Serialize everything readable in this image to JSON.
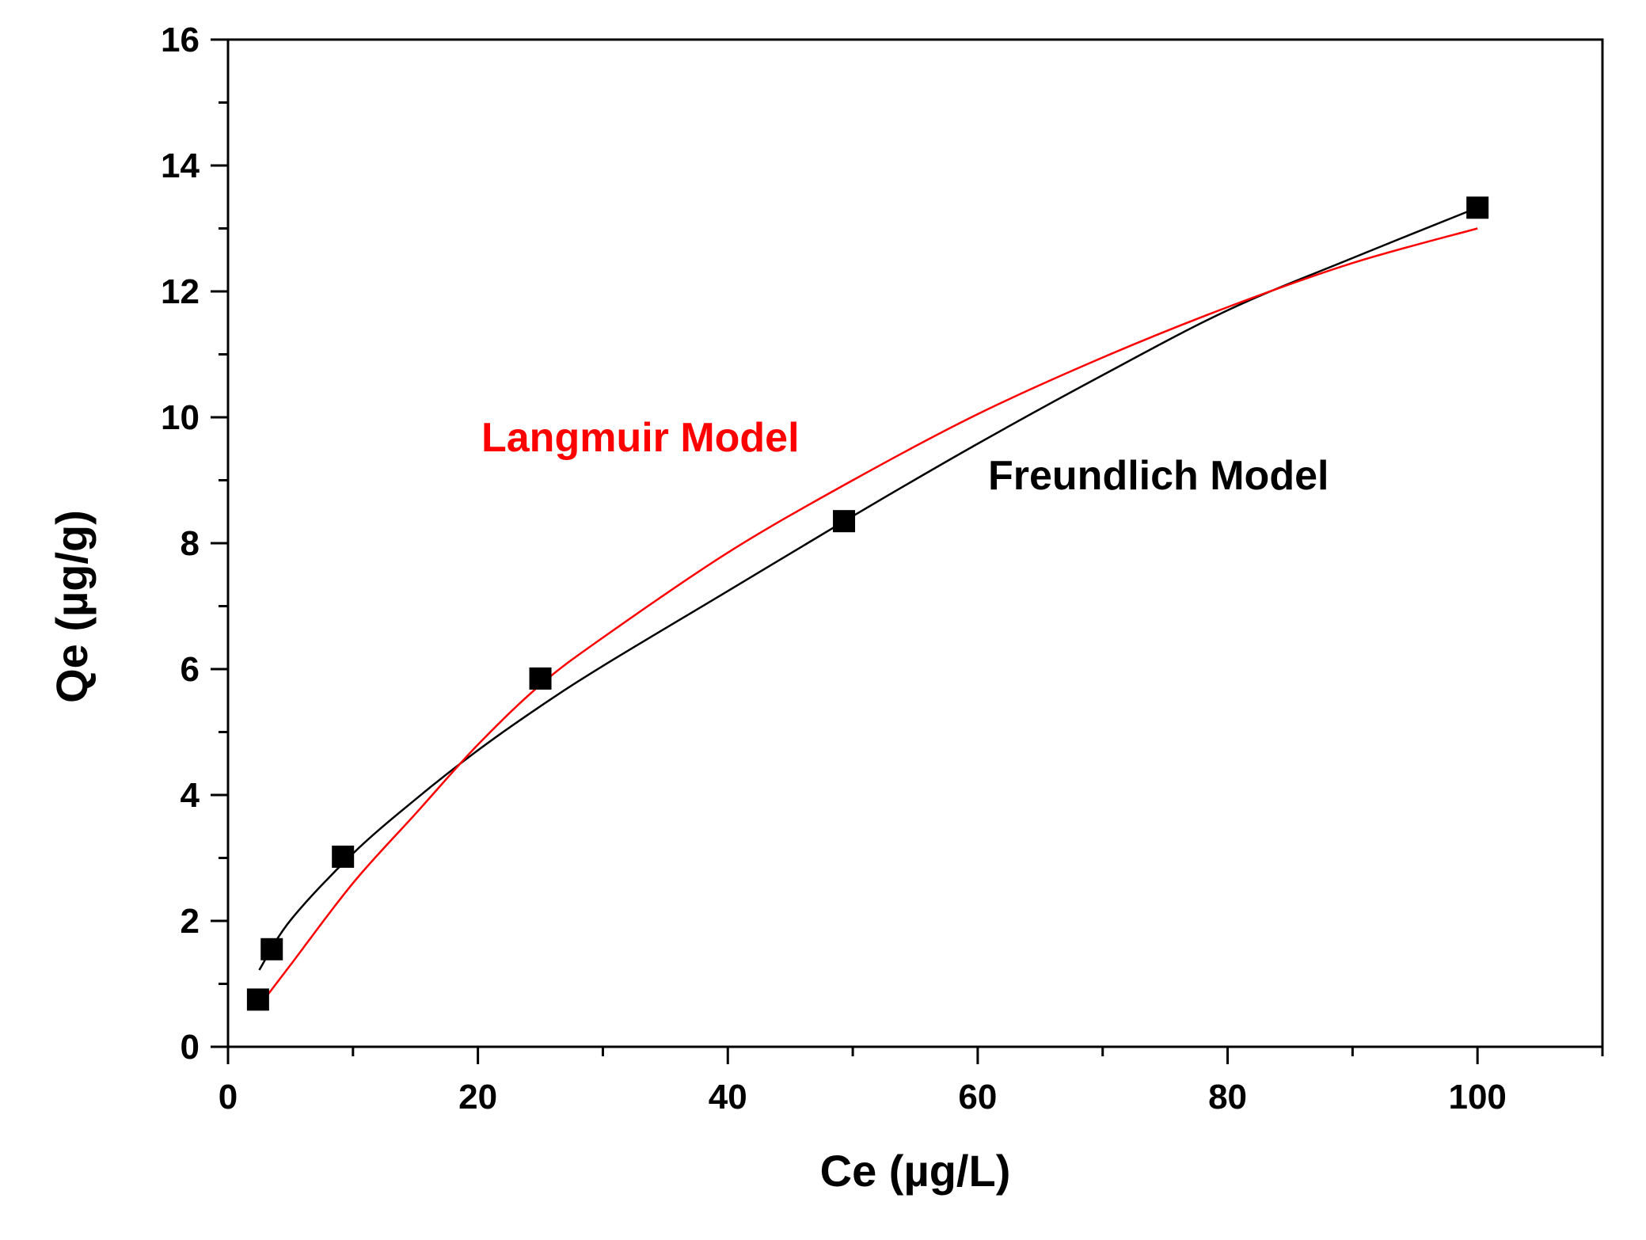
{
  "chart_data": {
    "type": "scatter",
    "xlabel": "Ce (µg/L)",
    "ylabel": "Qe (µg/g)",
    "xlim": [
      0,
      110
    ],
    "ylim": [
      0,
      16
    ],
    "x_ticks": [
      0,
      20,
      40,
      60,
      80,
      100
    ],
    "y_ticks": [
      0,
      2,
      4,
      6,
      8,
      10,
      12,
      14,
      16
    ],
    "grid": false,
    "legend": "none",
    "series": [
      {
        "name": "",
        "kind": "points",
        "marker": "square",
        "color": "#000000",
        "x": [
          2.4,
          3.5,
          9.2,
          25.0,
          49.3,
          100.0
        ],
        "y": [
          0.75,
          1.55,
          3.02,
          5.85,
          8.35,
          13.33
        ]
      },
      {
        "name": "Freundlich Model",
        "kind": "line",
        "color": "#000000",
        "x": [
          2.5,
          5,
          10,
          15,
          20,
          25,
          30,
          40,
          50,
          60,
          70,
          80,
          90,
          100
        ],
        "y": [
          1.22,
          2.01,
          3.07,
          3.93,
          4.71,
          5.41,
          6.05,
          7.24,
          8.43,
          9.58,
          10.67,
          11.7,
          12.53,
          13.33
        ]
      },
      {
        "name": "Langmuir Model",
        "kind": "line",
        "color": "#ff0000",
        "x": [
          2.5,
          5,
          10,
          15,
          20,
          25,
          30,
          40,
          50,
          60,
          70,
          80,
          90,
          100
        ],
        "y": [
          0.65,
          1.3,
          2.6,
          3.7,
          4.8,
          5.75,
          6.5,
          7.85,
          9.0,
          10.05,
          10.95,
          11.75,
          12.45,
          13.0
        ]
      }
    ],
    "annotations": [
      {
        "text": "Langmuir Model",
        "color": "#ff0000"
      },
      {
        "text": "Freundlich Model",
        "color": "#000000"
      }
    ]
  }
}
